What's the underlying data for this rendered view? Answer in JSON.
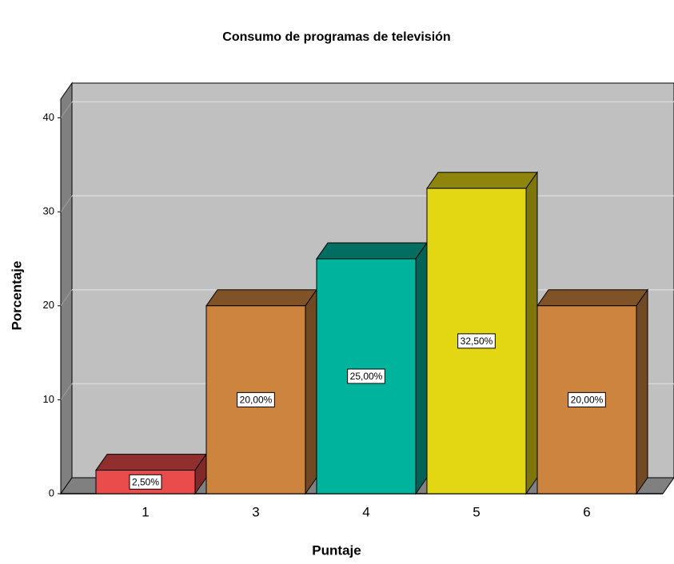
{
  "chart_data": {
    "type": "bar3d",
    "title": "Consumo de programas de televisión",
    "x_label": "Puntaje",
    "y_label": "Porcentaje",
    "categories": [
      "1",
      "3",
      "4",
      "5",
      "6"
    ],
    "values": [
      2.5,
      20,
      25,
      32.5,
      20
    ],
    "value_labels": [
      "2,50%",
      "20,00%",
      "25,00%",
      "32,50%",
      "20,00%"
    ],
    "colors": [
      "#ea4b4b",
      "#cd843f",
      "#00b39d",
      "#e3d714",
      "#cd843f"
    ],
    "ylim": [
      0,
      42
    ],
    "yticks": [
      0,
      10,
      20,
      30,
      40
    ],
    "grid": true
  }
}
